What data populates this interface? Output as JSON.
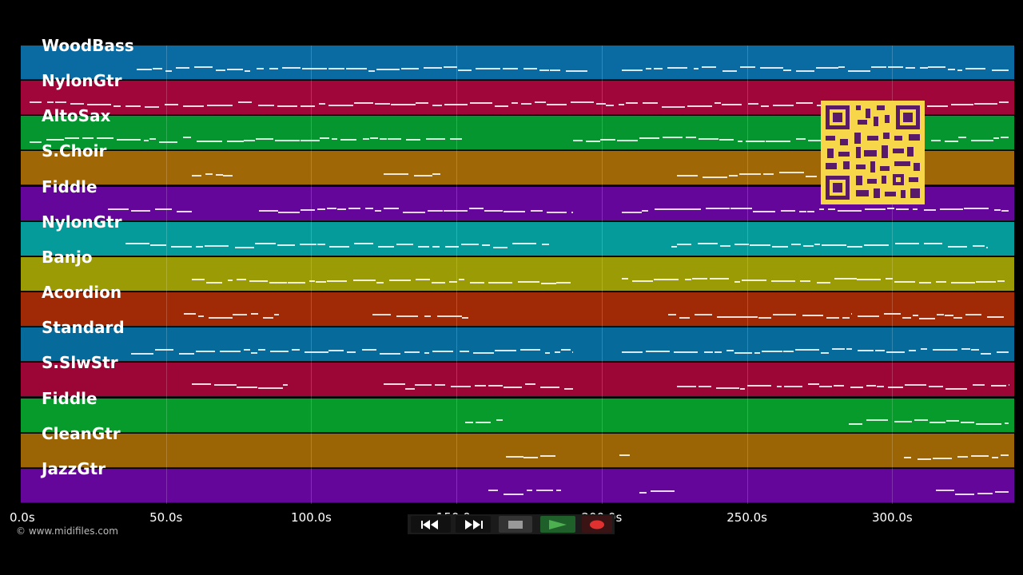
{
  "lanes": [
    {
      "label": "WoodBass",
      "color": "#0a6ba3"
    },
    {
      "label": "NylonGtr",
      "color": "#a0063a"
    },
    {
      "label": "AltoSax",
      "color": "#06962f"
    },
    {
      "label": "S.Choir",
      "color": "#a06706"
    },
    {
      "label": "Fiddle",
      "color": "#65069b"
    },
    {
      "label": "NylonGtr",
      "color": "#069b9b"
    },
    {
      "label": "Banjo",
      "color": "#9b9b06"
    },
    {
      "label": "Acordion",
      "color": "#a02a06"
    },
    {
      "label": "Standard",
      "color": "#066b9b"
    },
    {
      "label": "S.SlwStr",
      "color": "#9b0636"
    },
    {
      "label": "Fiddle",
      "color": "#069b2a"
    },
    {
      "label": "CleanGtr",
      "color": "#9b6506"
    },
    {
      "label": "JazzGtr",
      "color": "#65069b"
    }
  ],
  "time_axis": {
    "max_seconds": 342,
    "ticks": [
      {
        "label": "0.0s",
        "value": 0
      },
      {
        "label": "50.0s",
        "value": 50
      },
      {
        "label": "100.0s",
        "value": 100
      },
      {
        "label": "150.0s",
        "value": 150
      },
      {
        "label": "200.0s",
        "value": 200
      },
      {
        "label": "250.0s",
        "value": 250
      },
      {
        "label": "300.0s",
        "value": 300
      }
    ]
  },
  "copyright": "© www.midifiles.com",
  "transport": {
    "rewind_icon": "rewind-icon",
    "forward_icon": "fast-forward-icon",
    "stop_icon": "stop-icon",
    "play_icon": "play-icon",
    "record_icon": "record-icon",
    "record_color": "#e03030",
    "play_color": "#4caf50"
  },
  "qr_code": {
    "color": "#f7d64a",
    "module_color": "#5a1a6a"
  }
}
